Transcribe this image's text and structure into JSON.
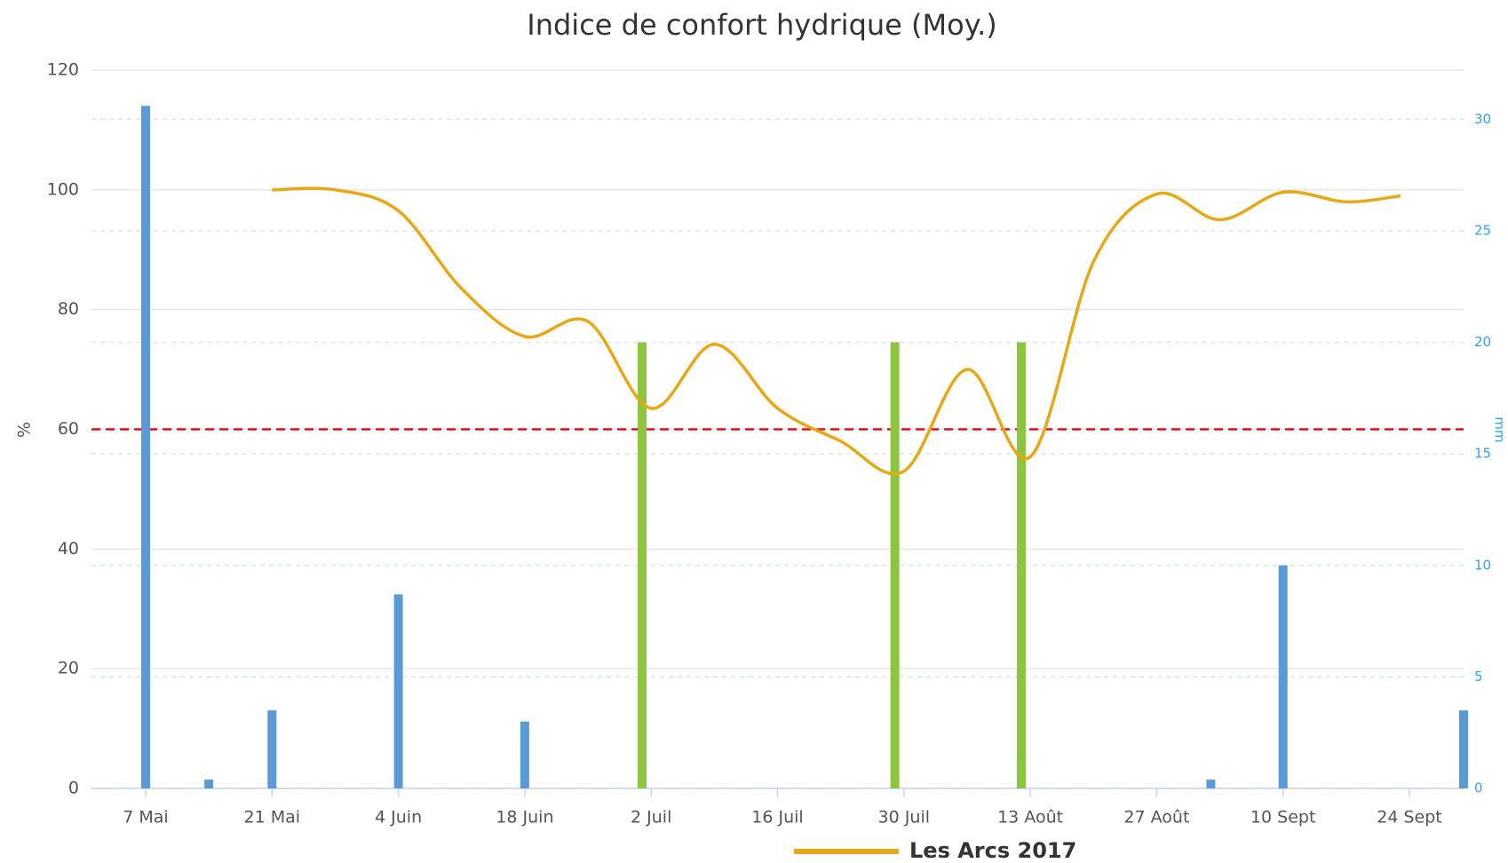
{
  "chart_data": {
    "type": "combo",
    "title": "Indice de confort hydrique (Moy.)",
    "ylabel": "%",
    "y2label": "mm",
    "xlim": [
      "05-01",
      "09-30"
    ],
    "xticks": [
      {
        "value": "05-07",
        "label": "7 Mai"
      },
      {
        "value": "05-21",
        "label": "21 Mai"
      },
      {
        "value": "06-04",
        "label": "4 Juin"
      },
      {
        "value": "06-18",
        "label": "18 Juin"
      },
      {
        "value": "07-02",
        "label": "2 Juil"
      },
      {
        "value": "07-16",
        "label": "16 Juil"
      },
      {
        "value": "07-30",
        "label": "30 Juil"
      },
      {
        "value": "08-13",
        "label": "13 Août"
      },
      {
        "value": "08-27",
        "label": "27 Août"
      },
      {
        "value": "09-10",
        "label": "10 Sept"
      },
      {
        "value": "09-24",
        "label": "24 Sept"
      }
    ],
    "ylim": [
      0,
      120
    ],
    "yticks": [
      0,
      20,
      40,
      60,
      80,
      100,
      120
    ],
    "y2lim": [
      0,
      32.2
    ],
    "y2ticks": [
      0,
      5,
      10,
      15,
      20,
      25,
      30
    ],
    "grid": true,
    "legend": "bottom",
    "plot_line": {
      "value": 60,
      "color": "#dd1111"
    },
    "series": [
      {
        "type": "bar",
        "axis": "y2",
        "color": "#5b9bd5",
        "x": [
          "05-07",
          "05-14",
          "05-21",
          "06-04",
          "06-18",
          "08-12",
          "09-02",
          "09-10",
          "09-30"
        ],
        "values": [
          30.6,
          0.4,
          3.5,
          8.7,
          3.0,
          1.3,
          0.4,
          10.0,
          3.5
        ]
      },
      {
        "type": "bar",
        "axis": "y2",
        "color": "#8cc63f",
        "x": [
          "07-01",
          "07-29",
          "08-12"
        ],
        "values": [
          20,
          20,
          20
        ]
      },
      {
        "type": "line",
        "name": "Les Arcs 2017",
        "color": "#e6a817",
        "x": [
          "05-21",
          "05-28",
          "06-04",
          "06-11",
          "06-18",
          "06-25",
          "07-02",
          "07-09",
          "07-16",
          "07-23",
          "07-30",
          "08-06",
          "08-13",
          "08-20",
          "08-27",
          "09-03",
          "09-10",
          "09-17",
          "09-23"
        ],
        "values": [
          100,
          100,
          96.5,
          83.5,
          75.5,
          78,
          63.5,
          74.2,
          63.5,
          58,
          53,
          70,
          55.4,
          88,
          99.3,
          95,
          99.6,
          98,
          99
        ]
      }
    ]
  }
}
